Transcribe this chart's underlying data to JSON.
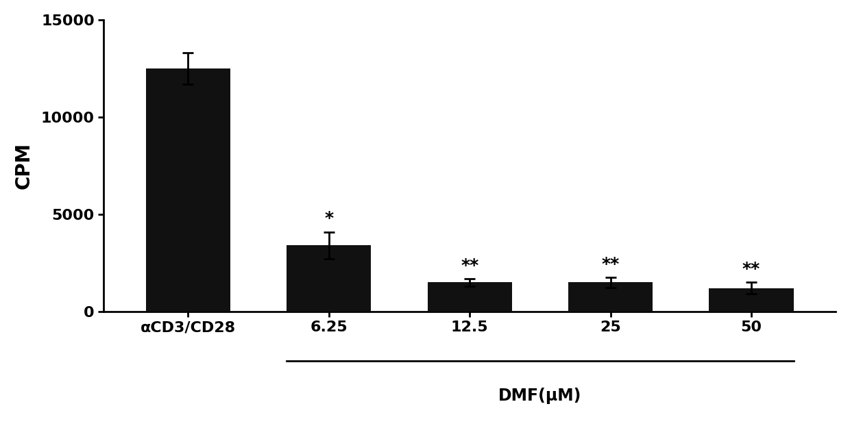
{
  "categories": [
    "αCD3/CD28",
    "6.25",
    "12.5",
    "25",
    "50"
  ],
  "values": [
    12500,
    3400,
    1500,
    1500,
    1200
  ],
  "errors": [
    800,
    700,
    180,
    250,
    300
  ],
  "bar_color": "#111111",
  "ylabel": "CPM",
  "xlabel": "DMF(μM)",
  "ylim": [
    0,
    15000
  ],
  "yticks": [
    0,
    5000,
    10000,
    15000
  ],
  "significance": [
    "",
    "*",
    "**",
    "**",
    "**"
  ],
  "sig_fontsize": 18,
  "bar_width": 0.6,
  "background_color": "#ffffff",
  "axis_linewidth": 2.0,
  "error_capsize": 6,
  "error_linewidth": 2.0,
  "xlim": [
    -0.6,
    4.6
  ]
}
